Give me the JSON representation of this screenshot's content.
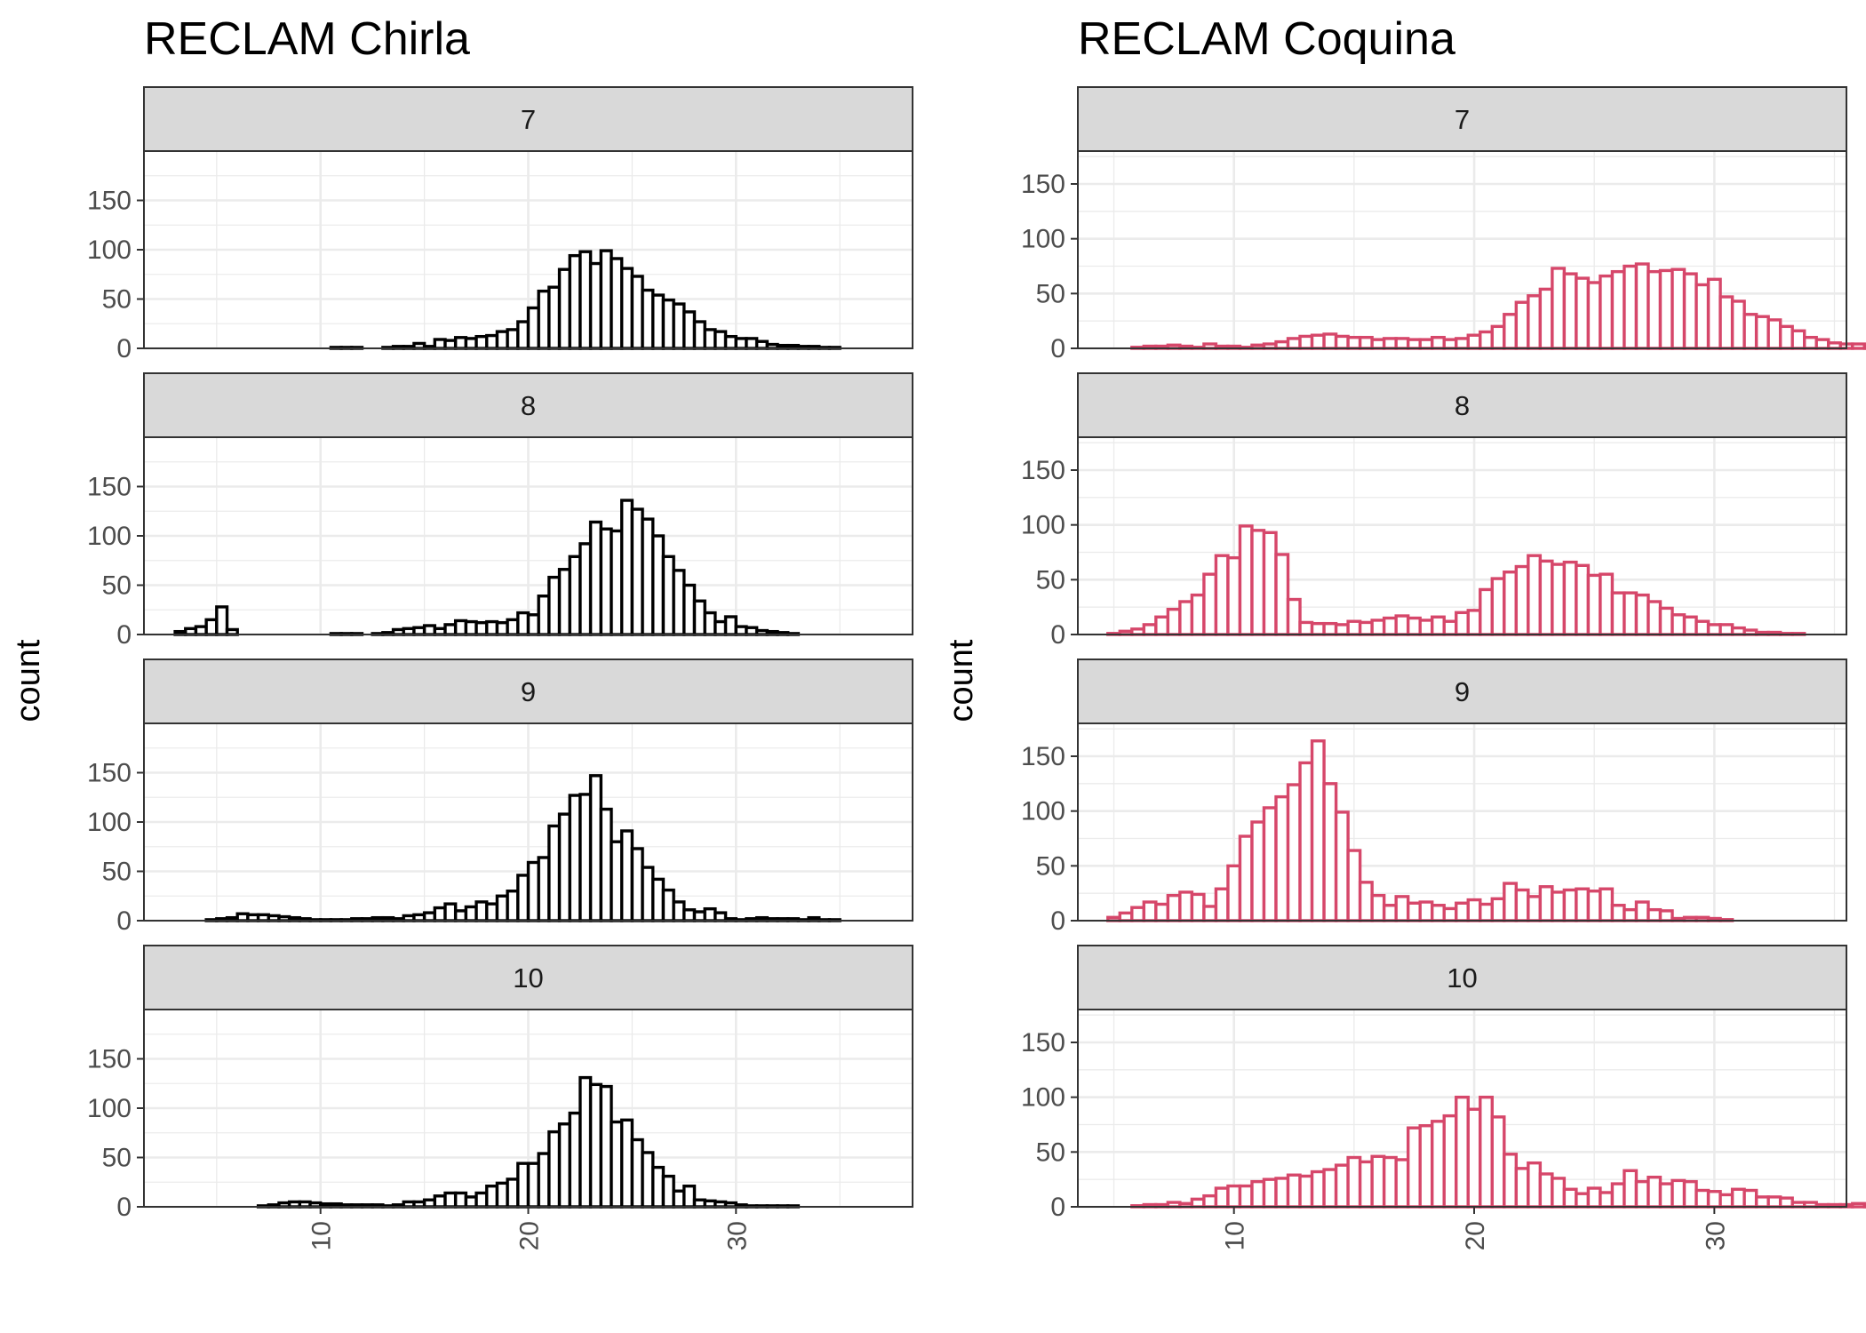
{
  "chart_data": [
    {
      "type": "bar",
      "subtype": "faceted-histogram",
      "title": "RECLAM Chirla",
      "ylabel": "count",
      "xlabel": "",
      "xlim": [
        1.5,
        38.5
      ],
      "ylim": [
        0,
        200
      ],
      "x_ticks": [
        10,
        20,
        30
      ],
      "y_ticks": [
        0,
        50,
        100,
        150
      ],
      "bar_color": "#000000",
      "bin_start": 3.0,
      "bin_width": 0.5,
      "grid": true,
      "facets": [
        {
          "label": "7",
          "values": [
            0,
            0,
            0,
            0,
            0,
            0,
            0,
            0,
            0,
            0,
            0,
            0,
            0,
            0,
            0,
            1,
            1,
            1,
            0,
            0,
            1,
            2,
            2,
            5,
            2,
            9,
            8,
            11,
            10,
            12,
            13,
            17,
            19,
            27,
            41,
            58,
            62,
            80,
            94,
            98,
            86,
            99,
            91,
            81,
            73,
            59,
            54,
            49,
            45,
            37,
            27,
            19,
            17,
            12,
            10,
            10,
            7,
            4,
            3,
            3,
            2,
            2,
            1,
            1,
            0,
            0,
            0,
            0
          ]
        },
        {
          "label": "8",
          "values": [
            3,
            6,
            8,
            15,
            28,
            5,
            0,
            0,
            0,
            0,
            0,
            0,
            0,
            0,
            0,
            1,
            1,
            1,
            0,
            1,
            2,
            5,
            6,
            7,
            9,
            6,
            10,
            14,
            13,
            12,
            13,
            12,
            15,
            22,
            20,
            39,
            58,
            66,
            79,
            92,
            114,
            107,
            105,
            136,
            127,
            117,
            100,
            79,
            65,
            50,
            34,
            22,
            13,
            18,
            8,
            7,
            4,
            3,
            2,
            1,
            0,
            0,
            0,
            0,
            0,
            0,
            0,
            0
          ]
        },
        {
          "label": "9",
          "values": [
            0,
            0,
            0,
            1,
            2,
            3,
            7,
            6,
            6,
            5,
            4,
            3,
            2,
            1,
            1,
            1,
            1,
            2,
            2,
            3,
            3,
            2,
            5,
            6,
            8,
            13,
            17,
            10,
            14,
            19,
            17,
            25,
            30,
            46,
            59,
            64,
            96,
            108,
            127,
            128,
            147,
            113,
            80,
            91,
            73,
            54,
            42,
            31,
            19,
            11,
            9,
            12,
            8,
            2,
            1,
            2,
            3,
            2,
            2,
            2,
            1,
            3,
            1,
            1,
            0,
            0,
            0,
            0
          ]
        },
        {
          "label": "10",
          "values": [
            0,
            0,
            0,
            0,
            0,
            0,
            0,
            0,
            1,
            2,
            4,
            5,
            5,
            4,
            3,
            3,
            2,
            2,
            2,
            2,
            1,
            2,
            5,
            5,
            7,
            11,
            14,
            14,
            10,
            14,
            21,
            24,
            28,
            44,
            44,
            54,
            76,
            84,
            95,
            131,
            124,
            122,
            86,
            88,
            68,
            55,
            40,
            31,
            16,
            21,
            7,
            6,
            5,
            4,
            2,
            1,
            1,
            1,
            1,
            1,
            0,
            0,
            0,
            0,
            0,
            0,
            0,
            0
          ]
        }
      ]
    },
    {
      "type": "bar",
      "subtype": "faceted-histogram",
      "title": "RECLAM Coquina",
      "ylabel": "count",
      "xlabel": "",
      "xlim": [
        3.5,
        35.5
      ],
      "ylim": [
        0,
        180
      ],
      "x_ticks": [
        10,
        20,
        30
      ],
      "y_ticks": [
        0,
        50,
        100,
        150
      ],
      "bar_color": "#d6476a",
      "bin_start": 4.75,
      "bin_width": 0.5,
      "grid": true,
      "facets": [
        {
          "label": "7",
          "values": [
            0,
            0,
            1,
            2,
            2,
            3,
            2,
            1,
            4,
            2,
            2,
            1,
            3,
            4,
            6,
            9,
            11,
            12,
            13,
            11,
            10,
            10,
            8,
            9,
            9,
            8,
            8,
            10,
            8,
            9,
            12,
            15,
            20,
            31,
            42,
            48,
            54,
            73,
            68,
            64,
            60,
            66,
            70,
            75,
            77,
            70,
            71,
            72,
            68,
            58,
            63,
            47,
            43,
            31,
            29,
            26,
            20,
            16,
            10,
            8,
            5,
            4,
            4,
            2,
            3,
            1,
            1,
            0
          ]
        },
        {
          "label": "8",
          "values": [
            1,
            3,
            5,
            9,
            16,
            23,
            30,
            36,
            55,
            72,
            70,
            99,
            95,
            93,
            73,
            32,
            11,
            10,
            10,
            9,
            12,
            11,
            13,
            15,
            17,
            15,
            13,
            16,
            12,
            20,
            22,
            41,
            51,
            57,
            62,
            72,
            67,
            64,
            66,
            63,
            54,
            55,
            38,
            38,
            36,
            30,
            24,
            18,
            16,
            12,
            9,
            9,
            6,
            4,
            2,
            2,
            1,
            1,
            0
          ]
        },
        {
          "label": "9",
          "values": [
            3,
            7,
            12,
            17,
            15,
            23,
            26,
            24,
            13,
            29,
            50,
            77,
            90,
            103,
            113,
            124,
            144,
            164,
            125,
            99,
            64,
            35,
            23,
            14,
            22,
            16,
            17,
            14,
            11,
            16,
            19,
            15,
            20,
            34,
            28,
            22,
            31,
            26,
            28,
            29,
            27,
            29,
            14,
            10,
            17,
            10,
            9,
            2,
            3,
            3,
            2,
            1,
            0,
            0,
            0,
            0,
            0,
            0
          ]
        },
        {
          "label": "10",
          "values": [
            0,
            0,
            1,
            2,
            2,
            4,
            3,
            7,
            10,
            17,
            19,
            19,
            23,
            25,
            26,
            29,
            28,
            32,
            34,
            38,
            45,
            41,
            46,
            45,
            43,
            72,
            74,
            78,
            83,
            100,
            89,
            100,
            82,
            48,
            35,
            40,
            30,
            26,
            16,
            12,
            17,
            13,
            21,
            33,
            23,
            27,
            21,
            24,
            23,
            15,
            14,
            11,
            16,
            15,
            9,
            9,
            8,
            4,
            4,
            2,
            2,
            2,
            3,
            1,
            3,
            2,
            0,
            0
          ]
        }
      ]
    }
  ]
}
